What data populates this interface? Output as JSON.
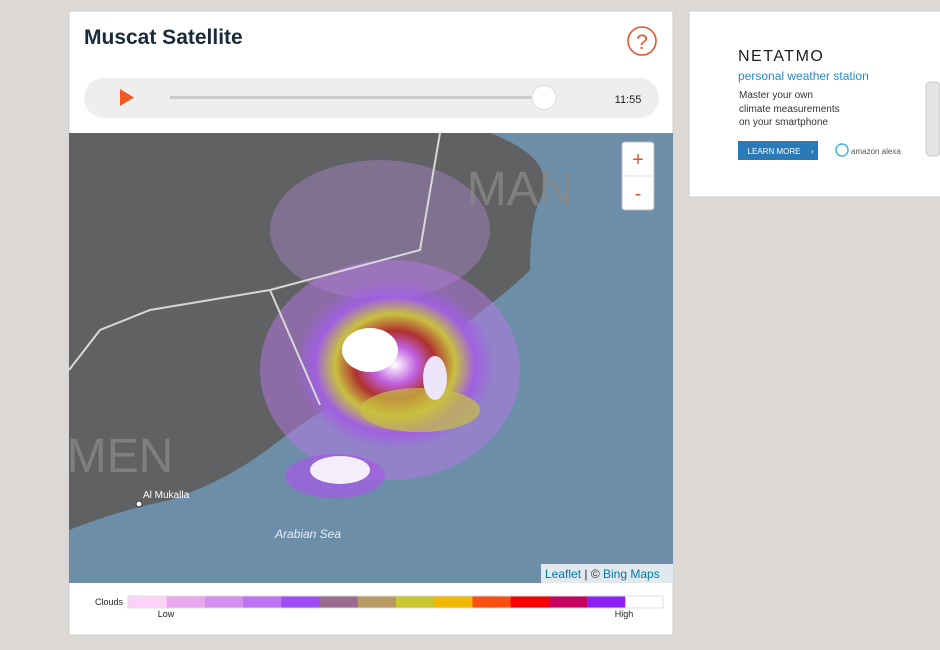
{
  "widget": {
    "title": "Muscat Satellite",
    "help_icon": "?",
    "time": "11:55",
    "zoom_in": "+",
    "zoom_out": "-",
    "map_labels": {
      "country_1": "MAN",
      "country_2": "MEN",
      "city": "Al Mukalla",
      "sea": "Arabian Sea"
    },
    "attribution": {
      "leaflet": "Leaflet",
      "separator": " | © ",
      "bing": "Bing Maps"
    },
    "legend": {
      "label": "Clouds",
      "low": "Low",
      "high": "High",
      "colors": [
        "#fcd2f8",
        "#e8a8f0",
        "#d490f0",
        "#bd72f2",
        "#a04cf4",
        "#9a6a8c",
        "#b89a62",
        "#c8c830",
        "#f0b800",
        "#f85010",
        "#f80000",
        "#c80060",
        "#9020f8",
        "#ffffff"
      ]
    }
  },
  "ad": {
    "brand": "NETATMO",
    "tagline": "personal weather station",
    "lines": [
      "Master your own",
      "climate measurements",
      "on your smartphone"
    ],
    "button": "LEARN MORE",
    "partner": "amazon alexa"
  }
}
